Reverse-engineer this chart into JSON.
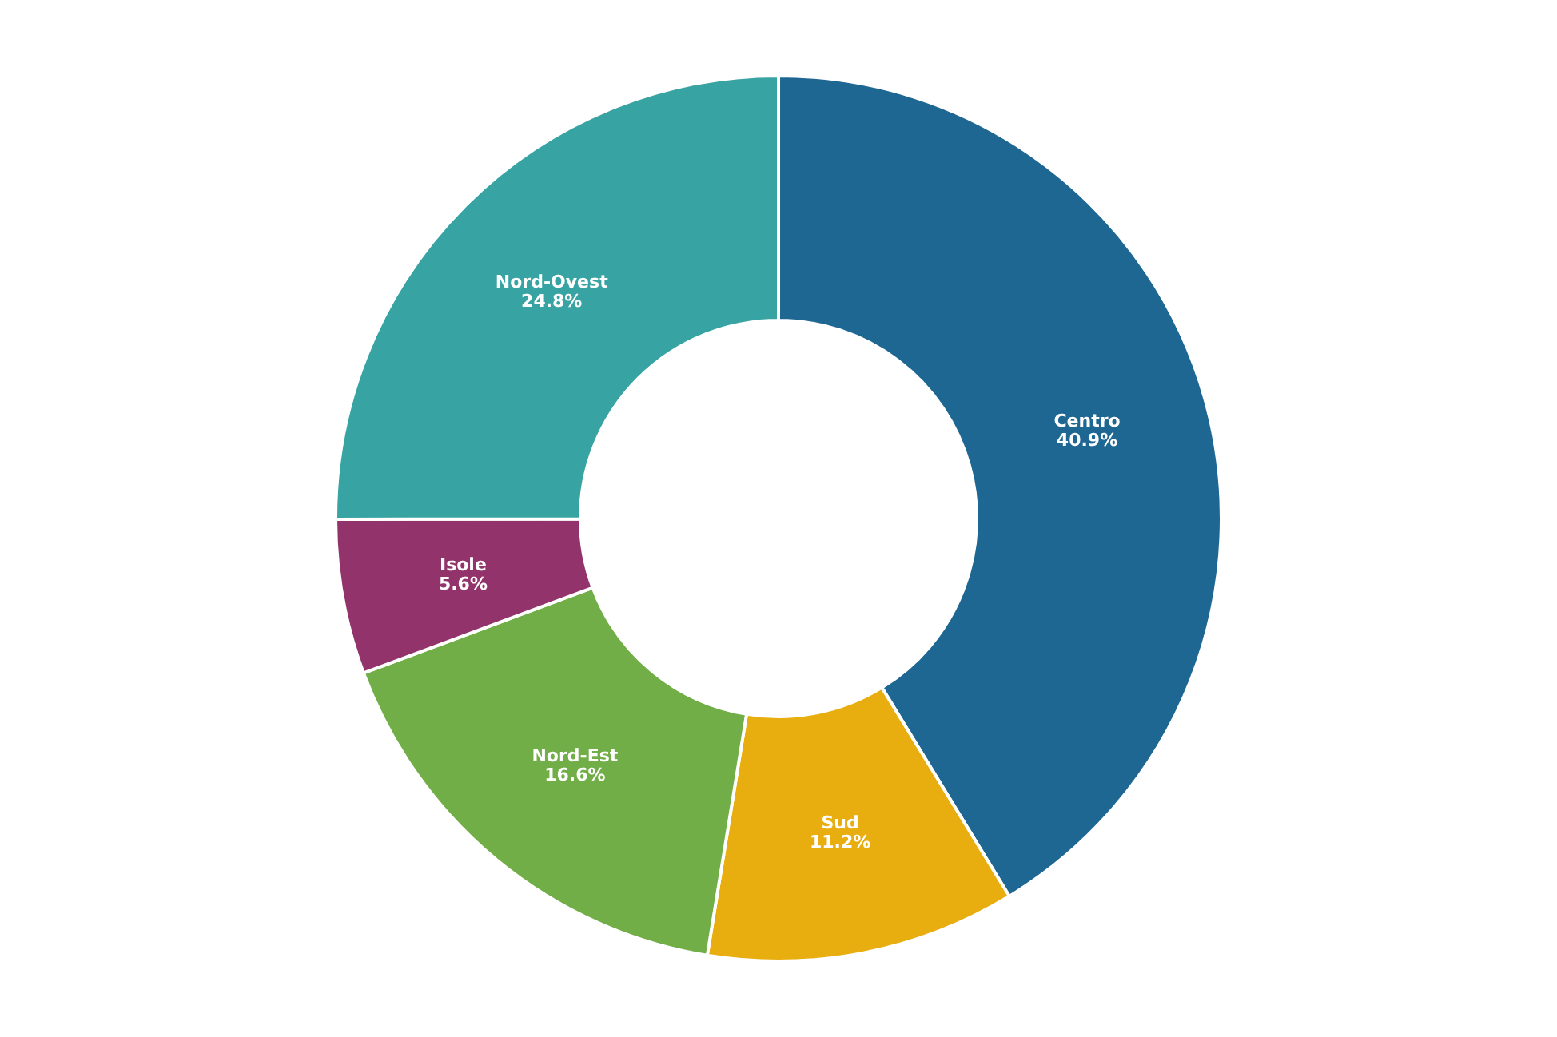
{
  "chart_data": {
    "type": "donut",
    "categories": [
      "Centro",
      "Sud",
      "Nord-Est",
      "Isole",
      "Nord-Ovest"
    ],
    "values": [
      40.9,
      11.2,
      16.6,
      5.6,
      24.8
    ],
    "value_labels": [
      "40.9%",
      "11.2%",
      "16.6%",
      "5.6%",
      "24.8%"
    ],
    "colors": [
      "#1f6793",
      "#e8ad0e",
      "#72ae47",
      "#93336b",
      "#38a3a3"
    ],
    "legend": false
  }
}
